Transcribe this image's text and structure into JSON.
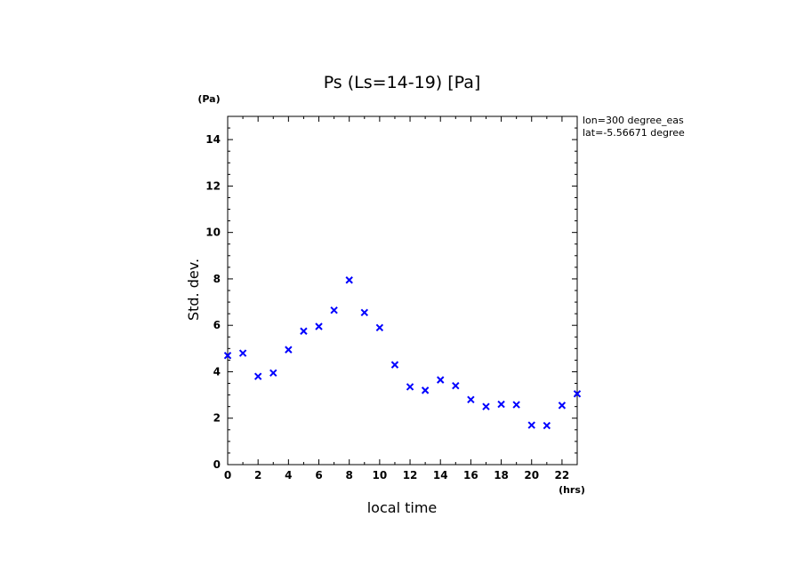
{
  "chart_data": {
    "type": "scatter",
    "title": "Ps (Ls=14-19) [Pa]",
    "xlabel": "local time",
    "ylabel": "Std. dev.",
    "x_unit": "(hrs)",
    "y_unit": "(Pa)",
    "xlim": [
      0,
      23
    ],
    "ylim": [
      0,
      15
    ],
    "x_ticks": [
      0,
      2,
      4,
      6,
      8,
      10,
      12,
      14,
      16,
      18,
      20,
      22
    ],
    "y_ticks": [
      0,
      2,
      4,
      6,
      8,
      10,
      12,
      14
    ],
    "marker": "x",
    "marker_color": "#0000ff",
    "grid": false,
    "annotations": [
      "lon=300 degree_eas",
      "lat=-5.56671 degree"
    ],
    "series": [
      {
        "x": [
          0,
          1,
          2,
          3,
          4,
          5,
          6,
          7,
          8,
          9,
          10,
          11,
          12,
          13,
          14,
          15,
          16,
          17,
          18,
          19,
          20,
          21,
          22,
          23
        ],
        "y": [
          4.7,
          4.8,
          3.8,
          3.95,
          4.95,
          5.75,
          5.95,
          6.65,
          7.95,
          6.55,
          5.9,
          4.3,
          3.35,
          3.2,
          3.65,
          3.4,
          2.8,
          2.5,
          2.6,
          2.58,
          1.7,
          1.68,
          2.55,
          3.05
        ]
      }
    ]
  }
}
